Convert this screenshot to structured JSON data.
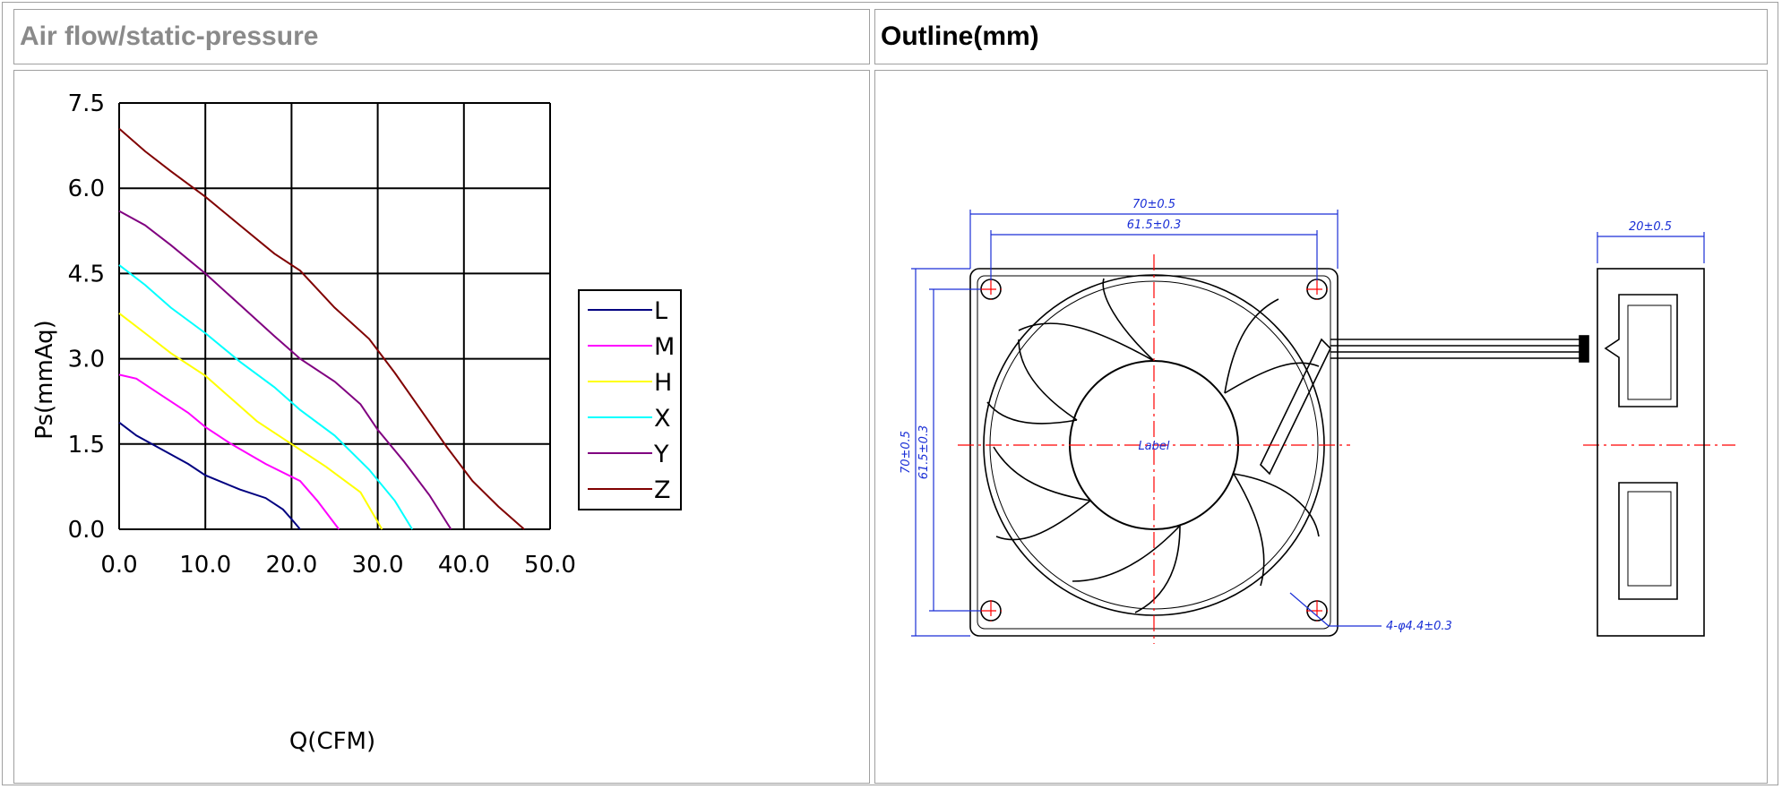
{
  "headers": {
    "left": "Air flow/static-pressure",
    "right": "Outline(mm)"
  },
  "chart_data": {
    "type": "line",
    "xlabel": "Q(CFM)",
    "ylabel": "Ps(mmAq)",
    "xlim": [
      0,
      50
    ],
    "ylim": [
      0,
      7.5
    ],
    "x_ticks": [
      "0.0",
      "10.0",
      "20.0",
      "30.0",
      "40.0",
      "50.0"
    ],
    "y_ticks": [
      "0.0",
      "1.5",
      "3.0",
      "4.5",
      "6.0",
      "7.5"
    ],
    "grid": true,
    "legend_position": "right",
    "series": [
      {
        "name": "L",
        "color": "#000080",
        "points": [
          [
            0,
            1.88
          ],
          [
            2,
            1.65
          ],
          [
            5,
            1.4
          ],
          [
            8,
            1.15
          ],
          [
            10,
            0.95
          ],
          [
            14,
            0.7
          ],
          [
            17,
            0.55
          ],
          [
            19,
            0.35
          ],
          [
            20,
            0.18
          ],
          [
            21,
            0
          ]
        ]
      },
      {
        "name": "M",
        "color": "#ff00ff",
        "points": [
          [
            0,
            2.72
          ],
          [
            2,
            2.65
          ],
          [
            5,
            2.35
          ],
          [
            8,
            2.05
          ],
          [
            10,
            1.8
          ],
          [
            13,
            1.5
          ],
          [
            17,
            1.15
          ],
          [
            21,
            0.85
          ],
          [
            23,
            0.5
          ],
          [
            25.5,
            0
          ]
        ]
      },
      {
        "name": "H",
        "color": "#ffff00",
        "points": [
          [
            0,
            3.8
          ],
          [
            3,
            3.45
          ],
          [
            6,
            3.1
          ],
          [
            10,
            2.7
          ],
          [
            13,
            2.3
          ],
          [
            16,
            1.9
          ],
          [
            20,
            1.5
          ],
          [
            24,
            1.1
          ],
          [
            28,
            0.65
          ],
          [
            30.5,
            0
          ]
        ]
      },
      {
        "name": "X",
        "color": "#00ffff",
        "points": [
          [
            0,
            4.65
          ],
          [
            3,
            4.3
          ],
          [
            6,
            3.9
          ],
          [
            10,
            3.45
          ],
          [
            14,
            2.95
          ],
          [
            18,
            2.5
          ],
          [
            21,
            2.1
          ],
          [
            25,
            1.65
          ],
          [
            29,
            1.05
          ],
          [
            32,
            0.5
          ],
          [
            34,
            0
          ]
        ]
      },
      {
        "name": "Y",
        "color": "#800080",
        "points": [
          [
            0,
            5.6
          ],
          [
            3,
            5.35
          ],
          [
            6,
            5.0
          ],
          [
            10,
            4.5
          ],
          [
            14,
            3.95
          ],
          [
            18,
            3.4
          ],
          [
            21,
            3.0
          ],
          [
            25,
            2.6
          ],
          [
            28,
            2.2
          ],
          [
            30,
            1.75
          ],
          [
            33,
            1.2
          ],
          [
            36,
            0.6
          ],
          [
            38.5,
            0
          ]
        ]
      },
      {
        "name": "Z",
        "color": "#800000",
        "points": [
          [
            0,
            7.05
          ],
          [
            3,
            6.65
          ],
          [
            6,
            6.3
          ],
          [
            10,
            5.85
          ],
          [
            14,
            5.35
          ],
          [
            18,
            4.85
          ],
          [
            21,
            4.55
          ],
          [
            25,
            3.9
          ],
          [
            29,
            3.35
          ],
          [
            32,
            2.75
          ],
          [
            35,
            2.1
          ],
          [
            38,
            1.45
          ],
          [
            41,
            0.85
          ],
          [
            44,
            0.4
          ],
          [
            47,
            0
          ]
        ]
      }
    ]
  },
  "outline": {
    "dim_top_outer": "70±0.5",
    "dim_top_inner": "61.5±0.3",
    "dim_left_outer": "70±0.5",
    "dim_left_inner": "61.5±0.3",
    "dim_side": "20±0.5",
    "hub_label": "Label",
    "hole_callout": "4-φ4.4±0.3"
  }
}
